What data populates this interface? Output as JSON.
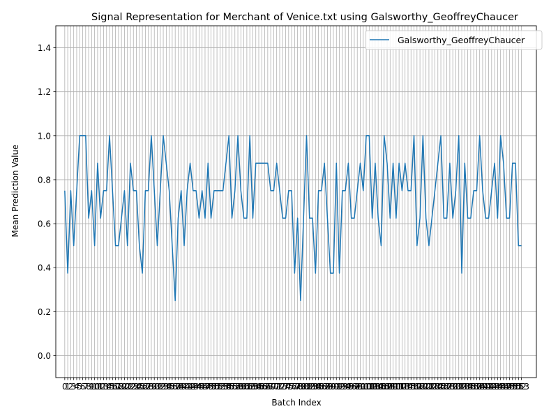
{
  "chart_data": {
    "type": "line",
    "title": "Signal Representation for Merchant of Venice.txt using Galsworthy_GeoffreyChaucer",
    "xlabel": "Batch Index",
    "ylabel": "Mean Prediction Value",
    "xlim": [
      -3,
      158
    ],
    "ylim": [
      -0.1,
      1.5
    ],
    "yticks": [
      0.0,
      0.2,
      0.4,
      0.6,
      0.8,
      1.0,
      1.2,
      1.4
    ],
    "grid": true,
    "legend_position": "top-right",
    "series": [
      {
        "name": "Galsworthy_GeoffreyChaucer",
        "color": "#1f77b4",
        "values": [
          0.75,
          0.375,
          0.75,
          0.5,
          0.75,
          1.0,
          1.0,
          1.0,
          0.625,
          0.75,
          0.5,
          0.875,
          0.625,
          0.75,
          0.75,
          1.0,
          0.75,
          0.5,
          0.5,
          0.625,
          0.75,
          0.5,
          0.875,
          0.75,
          0.75,
          0.5,
          0.375,
          0.75,
          0.75,
          1.0,
          0.75,
          0.5,
          0.75,
          1.0,
          0.875,
          0.75,
          0.5,
          0.25,
          0.625,
          0.75,
          0.5,
          0.75,
          0.875,
          0.75,
          0.75,
          0.625,
          0.75,
          0.625,
          0.875,
          0.625,
          0.75,
          0.75,
          0.75,
          0.75,
          0.875,
          1.0,
          0.625,
          0.75,
          1.0,
          0.75,
          0.625,
          0.625,
          1.0,
          0.625,
          0.875,
          0.875,
          0.875,
          0.875,
          0.875,
          0.75,
          0.75,
          0.875,
          0.75,
          0.625,
          0.625,
          0.75,
          0.75,
          0.375,
          0.625,
          0.25,
          0.625,
          1.0,
          0.625,
          0.625,
          0.375,
          0.75,
          0.75,
          0.875,
          0.625,
          0.375,
          0.375,
          0.875,
          0.375,
          0.75,
          0.75,
          0.875,
          0.625,
          0.625,
          0.75,
          0.875,
          0.75,
          1.0,
          1.0,
          0.625,
          0.875,
          0.625,
          0.5,
          1.0,
          0.875,
          0.625,
          0.875,
          0.625,
          0.875,
          0.75,
          0.875,
          0.75,
          0.75,
          1.0,
          0.5,
          0.625,
          1.0,
          0.625,
          0.5,
          0.625,
          0.75,
          0.875,
          1.0,
          0.625,
          0.625,
          0.875,
          0.625,
          0.75,
          1.0,
          0.375,
          0.875,
          0.625,
          0.625,
          0.75,
          0.75,
          1.0,
          0.75,
          0.625,
          0.625,
          0.75,
          0.875,
          0.625,
          1.0,
          0.875,
          0.625,
          0.625,
          0.875,
          0.875,
          0.5,
          0.5
        ]
      }
    ]
  }
}
